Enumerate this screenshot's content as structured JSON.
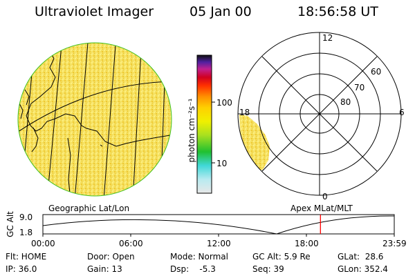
{
  "header": {
    "instrument": "Ultraviolet Imager",
    "date": "05 Jan 00",
    "time": "18:56:58 UT"
  },
  "colorbar": {
    "unit_label": "photon cm⁻²s⁻¹",
    "ticks": [
      "100",
      "10"
    ]
  },
  "polar_plot": {
    "mlt_labels": [
      "12",
      "18",
      "6",
      "0"
    ],
    "mlat_labels": [
      "60",
      "70",
      "80"
    ]
  },
  "map": {
    "panel_label": "Geographic Lat/Lon",
    "polar_panel_label": "Apex MLat/MLT"
  },
  "altitude_plot": {
    "axis_label": "GC Alt",
    "y_ticks": [
      "9.0",
      "1.8"
    ],
    "x_ticks": [
      "00:00",
      "06:00",
      "12:00",
      "18:00",
      "23:59"
    ],
    "current_time_fraction": 0.79,
    "marker_color": "#ff0000"
  },
  "status": {
    "flt": "Flt: HOME",
    "ip": "IP: 36.0",
    "door": "Door: Open",
    "gain": "Gain: 13",
    "mode": "Mode: Normal",
    "dsp": "Dsp:    -5.3",
    "gc_alt": "GC Alt: 5.9 Re",
    "seq": "Seq: 39",
    "glat": "GLat:  28.6",
    "glon": "GLon: 352.4"
  }
}
